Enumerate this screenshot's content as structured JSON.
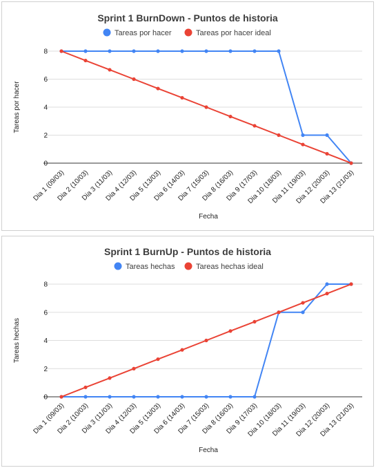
{
  "chart_data": [
    {
      "type": "line",
      "title": "Sprint 1 BurnDown - Puntos de historia",
      "xlabel": "Fecha",
      "ylabel": "Tareas por hacer",
      "ylim": [
        0,
        8
      ],
      "yticks": [
        0,
        2,
        4,
        6,
        8
      ],
      "grid": true,
      "legend_position": "top",
      "categories": [
        "Dia 1 (09/03)",
        "Dia 2 (10/03)",
        "Dia 3 (11/03)",
        "Dia 4 (12/03)",
        "Dia 5 (13/03)",
        "Dia 6 (14/03)",
        "Dia 7 (15/03)",
        "Dia 8 (16/03)",
        "Dia 9 (17/03)",
        "Dia 10 (18/03)",
        "Dia 11 (19/03)",
        "Dia 12 (20/03)",
        "Dia 13 (21/03)"
      ],
      "series": [
        {
          "name": "Tareas por hacer",
          "color": "#4285f4",
          "values": [
            8,
            8,
            8,
            8,
            8,
            8,
            8,
            8,
            8,
            8,
            2,
            2,
            0
          ]
        },
        {
          "name": "Tareas por hacer ideal",
          "color": "#ea4335",
          "values": [
            8,
            7.33,
            6.67,
            6,
            5.33,
            4.67,
            4,
            3.33,
            2.67,
            2,
            1.33,
            0.67,
            0
          ]
        }
      ]
    },
    {
      "type": "line",
      "title": "Sprint 1 BurnUp - Puntos de historia",
      "xlabel": "Fecha",
      "ylabel": "Tareas hechas",
      "ylim": [
        0,
        8
      ],
      "yticks": [
        0,
        2,
        4,
        6,
        8
      ],
      "grid": true,
      "legend_position": "top",
      "categories": [
        "Dia 1 (09/03)",
        "Dia 2 (10/03)",
        "Dia 3 (11/03)",
        "Dia 4 (12/03)",
        "Dia 5 (13/03)",
        "Dia 6 (14/03)",
        "Dia 7 (15/03)",
        "Dia 8 (16/03)",
        "Dia 9 (17/03)",
        "Dia 10 (18/03)",
        "Dia 11 (19/03)",
        "Dia 12 (20/03)",
        "Dia 13 (21/03)"
      ],
      "series": [
        {
          "name": "Tareas hechas",
          "color": "#4285f4",
          "values": [
            0,
            0,
            0,
            0,
            0,
            0,
            0,
            0,
            0,
            6,
            6,
            8,
            8
          ]
        },
        {
          "name": "Tareas hechas ideal",
          "color": "#ea4335",
          "values": [
            0,
            0.67,
            1.33,
            2,
            2.67,
            3.33,
            4,
            4.67,
            5.33,
            6,
            6.67,
            7.33,
            8
          ]
        }
      ]
    }
  ]
}
